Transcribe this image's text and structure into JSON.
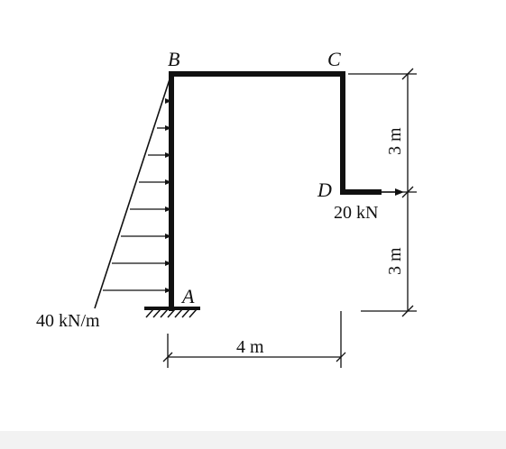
{
  "diagram": {
    "nodes": {
      "a": "A",
      "b": "B",
      "c": "C",
      "d": "D"
    },
    "loads": {
      "distributed": "40 kN/m",
      "point": "20 kN"
    },
    "dimensions": {
      "horizontal": "4 m",
      "upper_vertical": "3 m",
      "lower_vertical": "3 m"
    }
  }
}
